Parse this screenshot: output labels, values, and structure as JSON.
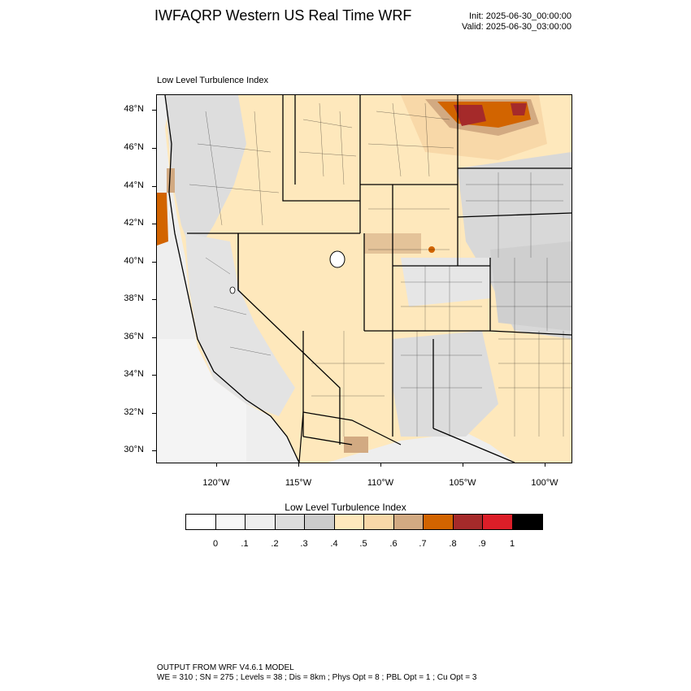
{
  "header": {
    "title": "IWFAQRP Western US Real Time WRF",
    "init": "Init: 2025-06-30_00:00:00",
    "valid": "Valid: 2025-06-30_03:00:00"
  },
  "map": {
    "subtitle": "Low Level Turbulence Index",
    "lat_labels": [
      "48°N",
      "46°N",
      "44°N",
      "42°N",
      "40°N",
      "38°N",
      "36°N",
      "34°N",
      "32°N",
      "30°N"
    ],
    "lon_labels": [
      "120°W",
      "115°W",
      "110°W",
      "105°W",
      "100°W"
    ]
  },
  "colorbar": {
    "title": "Low Level Turbulence Index",
    "labels": [
      "0",
      ".1",
      ".2",
      ".3",
      ".4",
      ".5",
      ".6",
      ".7",
      ".8",
      ".9",
      "1"
    ],
    "colors": [
      "#ffffff",
      "#f7f7f7",
      "#eeeeee",
      "#dddddd",
      "#cccccc",
      "#fee8bc",
      "#f8d8a8",
      "#d2aa82",
      "#d26400",
      "#a52a2a",
      "#dc1e28",
      "#000000"
    ]
  },
  "footer": {
    "line1": "OUTPUT FROM WRF V4.6.1 MODEL",
    "line2": "WE = 310 ; SN = 275 ; Levels = 38 ; Dis = 8km ; Phys Opt = 8 ; PBL Opt = 1 ; Cu Opt = 3"
  }
}
